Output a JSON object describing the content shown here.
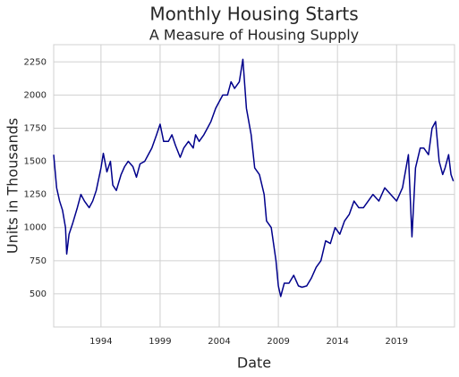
{
  "chart_data": {
    "type": "line",
    "title": "Monthly Housing Starts",
    "subtitle": "A Measure of Housing Supply",
    "x_label": "Date",
    "y_label": "Units in Thousands",
    "color": "#00008b",
    "grid": true,
    "xlim": [
      1990,
      2023.9
    ],
    "xticks": [
      1994,
      1999,
      2004,
      2009,
      2014,
      2019
    ],
    "ylim": [
      250,
      2380
    ],
    "yticks": [
      500,
      750,
      1000,
      1250,
      1500,
      1750,
      2000,
      2250
    ],
    "x": [
      1990.0,
      1990.25,
      1990.5,
      1990.75,
      1991.0,
      1991.1,
      1991.3,
      1991.6,
      1992.0,
      1992.3,
      1992.6,
      1993.0,
      1993.3,
      1993.6,
      1994.0,
      1994.2,
      1994.5,
      1994.8,
      1995.0,
      1995.3,
      1995.7,
      1996.0,
      1996.3,
      1996.7,
      1997.0,
      1997.3,
      1997.7,
      1998.0,
      1998.3,
      1998.7,
      1999.0,
      1999.3,
      1999.7,
      2000.0,
      2000.3,
      2000.7,
      2001.0,
      2001.4,
      2001.8,
      2002.0,
      2002.3,
      2002.7,
      2003.0,
      2003.3,
      2003.7,
      2004.0,
      2004.3,
      2004.7,
      2005.0,
      2005.3,
      2005.7,
      2006.0,
      2006.3,
      2006.7,
      2007.0,
      2007.4,
      2007.8,
      2008.0,
      2008.4,
      2008.8,
      2009.0,
      2009.2,
      2009.5,
      2009.9,
      2010.3,
      2010.7,
      2011.0,
      2011.4,
      2011.8,
      2012.2,
      2012.6,
      2013.0,
      2013.4,
      2013.8,
      2014.2,
      2014.6,
      2015.0,
      2015.4,
      2015.8,
      2016.2,
      2016.6,
      2017.0,
      2017.5,
      2018.0,
      2018.5,
      2019.0,
      2019.5,
      2020.0,
      2020.3,
      2020.6,
      2021.0,
      2021.3,
      2021.7,
      2022.0,
      2022.3,
      2022.6,
      2022.9,
      2023.1,
      2023.4,
      2023.6,
      2023.8
    ],
    "values": [
      1550,
      1300,
      1200,
      1130,
      1000,
      800,
      950,
      1030,
      1150,
      1250,
      1200,
      1150,
      1200,
      1280,
      1450,
      1560,
      1420,
      1500,
      1320,
      1280,
      1400,
      1460,
      1500,
      1460,
      1380,
      1480,
      1500,
      1550,
      1600,
      1700,
      1780,
      1650,
      1650,
      1700,
      1620,
      1530,
      1600,
      1650,
      1600,
      1700,
      1650,
      1700,
      1750,
      1800,
      1900,
      1950,
      2000,
      2000,
      2100,
      2050,
      2100,
      2270,
      1900,
      1700,
      1450,
      1400,
      1250,
      1050,
      1000,
      750,
      560,
      480,
      580,
      580,
      640,
      560,
      550,
      560,
      620,
      700,
      750,
      900,
      880,
      1000,
      950,
      1050,
      1100,
      1200,
      1150,
      1150,
      1200,
      1250,
      1200,
      1300,
      1250,
      1200,
      1300,
      1550,
      930,
      1450,
      1600,
      1600,
      1550,
      1750,
      1800,
      1500,
      1400,
      1450,
      1550,
      1400,
      1350
    ]
  }
}
